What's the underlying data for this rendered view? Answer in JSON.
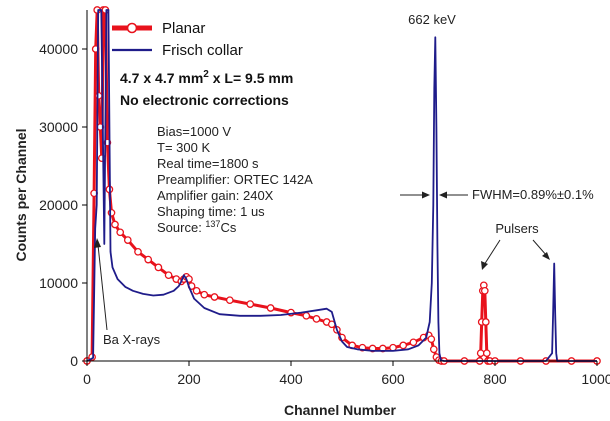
{
  "chart_data": {
    "type": "line",
    "xlabel": "Channel Number",
    "ylabel": "Counts per Channel",
    "xlim": [
      0,
      1000
    ],
    "ylim": [
      0,
      45000
    ],
    "x_ticks": [
      "0",
      "200",
      "400",
      "600",
      "800",
      "1000"
    ],
    "y_ticks": [
      "0",
      "10000",
      "20000",
      "30000",
      "40000"
    ],
    "x_tick_values": [
      0,
      200,
      400,
      600,
      800,
      1000
    ],
    "y_tick_values": [
      0,
      10000,
      20000,
      30000,
      40000
    ],
    "legend_position": "top-left",
    "series": [
      {
        "name": "Planar",
        "color": "#e8121c",
        "marker": "open-circle",
        "x": [
          0,
          10,
          14,
          17,
          20,
          23,
          26,
          29,
          32,
          36,
          40,
          44,
          48,
          55,
          65,
          80,
          100,
          120,
          140,
          160,
          175,
          185,
          190,
          195,
          200,
          205,
          215,
          230,
          250,
          280,
          320,
          360,
          400,
          430,
          450,
          470,
          480,
          490,
          500,
          520,
          540,
          560,
          580,
          600,
          620,
          640,
          660,
          670,
          675,
          680,
          685,
          690,
          695,
          700,
          740,
          770,
          772,
          774,
          776,
          778,
          780,
          782,
          784,
          786,
          790,
          800,
          850,
          900,
          950,
          1000
        ],
        "y": [
          0,
          500,
          21500,
          40000,
          45000,
          34000,
          30000,
          26000,
          45000,
          45000,
          28000,
          22000,
          19000,
          17500,
          16500,
          15500,
          14000,
          13000,
          12000,
          11000,
          10500,
          10200,
          10500,
          10800,
          10500,
          9600,
          9000,
          8500,
          8200,
          7800,
          7300,
          6800,
          6200,
          5800,
          5400,
          5000,
          4700,
          4000,
          3000,
          2000,
          1700,
          1600,
          1600,
          1700,
          2000,
          2400,
          3000,
          3300,
          2800,
          1500,
          500,
          100,
          0,
          0,
          0,
          0,
          1000,
          5000,
          9000,
          9700,
          9000,
          5000,
          1000,
          0,
          0,
          0,
          0,
          0,
          0,
          0
        ]
      },
      {
        "name": "Frisch collar",
        "color": "#1f1c8a",
        "marker": "none",
        "x": [
          0,
          12,
          16,
          19,
          22,
          25,
          28,
          31,
          34,
          38,
          42,
          46,
          50,
          60,
          75,
          90,
          110,
          130,
          150,
          170,
          180,
          185,
          190,
          195,
          200,
          210,
          230,
          260,
          300,
          340,
          380,
          420,
          450,
          470,
          480,
          490,
          500,
          510,
          530,
          560,
          600,
          630,
          650,
          665,
          672,
          676,
          679,
          681,
          683,
          685,
          687,
          689,
          691,
          694,
          700,
          780,
          900,
          912,
          914,
          916,
          918,
          920,
          922,
          930,
          1000
        ],
        "y": [
          0,
          400,
          17000,
          20000,
          45000,
          45000,
          45000,
          30000,
          15000,
          45000,
          45000,
          14000,
          12000,
          10500,
          9500,
          9000,
          8600,
          8400,
          8500,
          9000,
          9600,
          10200,
          11000,
          10500,
          9500,
          8000,
          6800,
          6000,
          5800,
          5800,
          5900,
          6200,
          6500,
          6700,
          6300,
          4000,
          2500,
          1800,
          1500,
          1300,
          1300,
          1500,
          2000,
          3000,
          5000,
          10000,
          20000,
          35000,
          41500,
          30000,
          15000,
          5000,
          1000,
          100,
          0,
          0,
          0,
          1000,
          6000,
          12500,
          6000,
          1000,
          0,
          0,
          0
        ]
      }
    ],
    "annotations": {
      "detector": "4.7 x 4.7 mm",
      "detector_sup": "2",
      "detector_rest": " x L= 9.5 mm",
      "corrections": "No electronic corrections",
      "bias": "Bias=1000 V",
      "temperature": "T= 300 K",
      "real_time": "Real time=1800 s",
      "preamplifier": "Preamplifier: ORTEC 142A",
      "amplifier": "Amplifier gain: 240X",
      "shaping": "Shaping time: 1 us",
      "source_prefix": "Source: ",
      "source_sup": "137",
      "source_suffix": "Cs",
      "peak_label": "662 keV",
      "fwhm": "FWHM=0.89%±0.1%",
      "pulsers": "Pulsers",
      "xrays": "Ba X-rays"
    }
  }
}
